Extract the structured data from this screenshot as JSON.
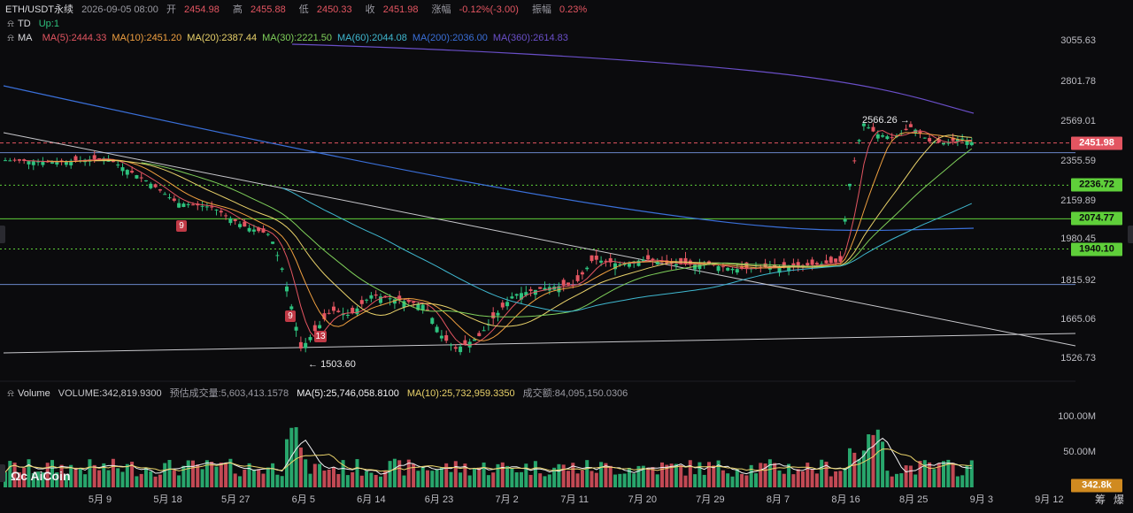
{
  "header": {
    "symbol": "ETH/USDT永续",
    "datetime": "2026-09-05 08:00",
    "open_label": "开",
    "open": "2454.98",
    "high_label": "高",
    "high": "2455.88",
    "low_label": "低",
    "low": "2450.33",
    "close_label": "收",
    "close": "2451.98",
    "change_label": "涨幅",
    "change": "-0.12%(-3.00)",
    "amp_label": "振幅",
    "amp": "0.23%"
  },
  "td_indicator": {
    "name": "TD",
    "value": "Up:1"
  },
  "ma_indicator": {
    "name": "MA",
    "items": [
      {
        "label": "MA(5):2444.33",
        "color": "#e35561"
      },
      {
        "label": "MA(10):2451.20",
        "color": "#f0a040"
      },
      {
        "label": "MA(20):2387.44",
        "color": "#e9d26a"
      },
      {
        "label": "MA(30):2221.50",
        "color": "#7fd05a"
      },
      {
        "label": "MA(60):2044.08",
        "color": "#3fb8d0"
      },
      {
        "label": "MA(200):2036.00",
        "color": "#3a6fd8"
      },
      {
        "label": "MA(360):2614.83",
        "color": "#6a4fc8"
      }
    ]
  },
  "volume_header": {
    "name": "Volume",
    "volume": "VOLUME:342,819.9300",
    "est": "预估成交量:5,603,413.1578",
    "ma5": "MA(5):25,746,058.8100",
    "ma10": "MA(10):25,732,959.3350",
    "amount": "成交额:84,095,150.0306"
  },
  "y_axis_labels": [
    "3055.63",
    "2801.78",
    "2569.01",
    "2355.59",
    "2159.89",
    "1980.45",
    "1815.92",
    "1665.06",
    "1526.73"
  ],
  "price_tags": [
    {
      "value": "2451.98",
      "bg": "#e35561",
      "fg": "#ffffff"
    },
    {
      "value": "2236.72",
      "bg": "#5fcf3a",
      "fg": "#0b0b0d"
    },
    {
      "value": "2074.77",
      "bg": "#5fcf3a",
      "fg": "#0b0b0d"
    },
    {
      "value": "1940.10",
      "bg": "#5fcf3a",
      "fg": "#0b0b0d"
    }
  ],
  "volume_axis_labels": [
    "100.00M",
    "50.00M"
  ],
  "volume_tag": {
    "value": "342.8k",
    "bg": "#d08a20"
  },
  "x_axis_labels": [
    "5月 9",
    "5月 18",
    "5月 27",
    "6月 5",
    "6月 14",
    "6月 23",
    "7月 2",
    "7月 11",
    "7月 20",
    "7月 29",
    "8月 7",
    "8月 16",
    "8月 25",
    "9月 3",
    "9月 12"
  ],
  "annotations": {
    "high": "2566.26",
    "low": "1503.60"
  },
  "td_counts": [
    "9",
    "9",
    "13"
  ],
  "logo": "AiCoin",
  "bottom_buttons": [
    "筹",
    "爆"
  ],
  "colors": {
    "up": "#2ec27e",
    "down": "#e35561",
    "bg": "#0b0b0d"
  },
  "chart_data": {
    "type": "candlestick",
    "x": [
      "5月 9",
      "5月 18",
      "5月 27",
      "6月 5",
      "6月 14",
      "6月 23",
      "7月 2",
      "7月 11",
      "7月 20",
      "7月 29",
      "8月 7",
      "8月 16",
      "8月 25",
      "9月 3",
      "9月 12"
    ],
    "y_ticks": [
      3055.63,
      2801.78,
      2569.01,
      2355.59,
      2159.89,
      1980.45,
      1815.92,
      1665.06,
      1526.73
    ],
    "last_close": 2451.98,
    "high": 2566.26,
    "low": 1503.6,
    "levels": [
      2451.98,
      2236.72,
      2074.77,
      1940.1
    ],
    "volume_ticks": [
      100,
      50
    ]
  }
}
